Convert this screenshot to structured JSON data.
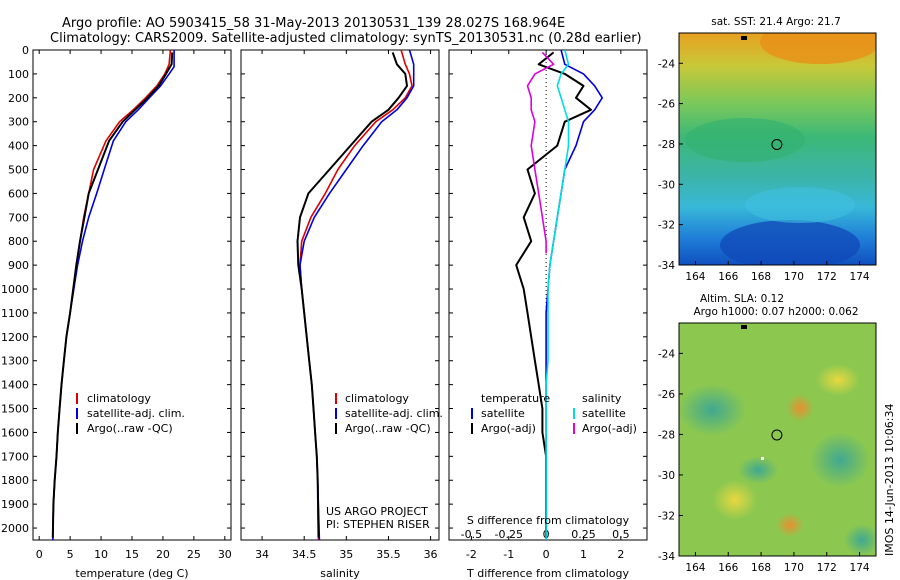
{
  "header": {
    "line1": "Argo profile: AO 5903415_58 31-May-2013 20130531_139 28.027S 168.964E",
    "line2": "Climatology: CARS2009. Satellite-adjusted climatology: synTS_20130531.nc (0.28d earlier)"
  },
  "side_stamp": "IMOS 14-Jun-2013 10:06:34",
  "project_note": {
    "line1": "US ARGO PROJECT",
    "line2": "PI: STEPHEN RISER"
  },
  "colors": {
    "climatology": "#dd0000",
    "satellite": "#0000dd",
    "argo": "#000000",
    "salinity_sat": "#00dddd",
    "salinity_argo": "#dd00dd"
  },
  "chart_data": [
    {
      "type": "line",
      "xlabel": "temperature (deg C)",
      "ylabel": "",
      "xlim": [
        -1,
        31
      ],
      "ylim": [
        2050,
        0
      ],
      "xticks": [
        0,
        5,
        10,
        15,
        20,
        25,
        30
      ],
      "yticks": [
        0,
        100,
        200,
        300,
        400,
        500,
        600,
        700,
        800,
        900,
        1000,
        1100,
        1200,
        1300,
        1400,
        1500,
        1600,
        1700,
        1800,
        1900,
        2000
      ],
      "legend": [
        "climatology",
        "satellite-adj. clim.",
        "Argo(..raw -QC)"
      ],
      "series": [
        {
          "name": "climatology",
          "color": "#dd0000",
          "x": [
            21.2,
            21.0,
            20.3,
            19.0,
            17.2,
            15.2,
            13.0,
            10.8,
            8.8,
            8.0,
            7.2,
            6.6,
            6.0,
            5.6,
            5.0,
            4.4,
            4.0,
            3.6,
            3.3,
            3.0,
            2.8,
            2.5,
            2.3,
            2.2
          ],
          "y": [
            0,
            60,
            100,
            150,
            200,
            250,
            300,
            380,
            500,
            600,
            700,
            800,
            900,
            1000,
            1100,
            1200,
            1300,
            1400,
            1500,
            1600,
            1700,
            1800,
            1900,
            2050
          ]
        },
        {
          "name": "satellite-adj. clim.",
          "color": "#0000dd",
          "x": [
            21.8,
            21.8,
            21.0,
            19.6,
            17.8,
            16.0,
            14.0,
            12.0,
            10.5,
            9.3,
            8.0,
            7.0,
            6.2,
            5.6,
            5.0,
            4.4,
            4.0,
            3.6,
            3.3,
            3.0,
            2.8,
            2.5,
            2.3,
            2.2
          ],
          "y": [
            0,
            70,
            100,
            150,
            200,
            250,
            300,
            380,
            500,
            600,
            700,
            800,
            900,
            1000,
            1100,
            1200,
            1300,
            1400,
            1500,
            1600,
            1700,
            1800,
            1900,
            2050
          ]
        },
        {
          "name": "Argo(..raw -QC)",
          "color": "#000000",
          "x": [
            21.5,
            21.4,
            20.5,
            19.3,
            17.5,
            15.5,
            13.5,
            11.3,
            9.5,
            8.0,
            7.3,
            6.6,
            6.0,
            5.5,
            5.0,
            4.4,
            4.0,
            3.6,
            3.3,
            3.0,
            2.8,
            2.5,
            2.3,
            2.2
          ],
          "y": [
            10,
            60,
            100,
            150,
            200,
            250,
            300,
            380,
            500,
            600,
            700,
            800,
            900,
            1000,
            1100,
            1200,
            1300,
            1400,
            1500,
            1600,
            1700,
            1800,
            1900,
            2040
          ]
        }
      ]
    },
    {
      "type": "line",
      "xlabel": "salinity",
      "ylabel": "",
      "xlim": [
        33.75,
        36.1
      ],
      "ylim": [
        2050,
        0
      ],
      "xticks": [
        34,
        34.5,
        35,
        35.5,
        36
      ],
      "legend": [
        "climatology",
        "satellite-adj. clim.",
        "Argo(..raw -QC)"
      ],
      "series": [
        {
          "name": "climatology",
          "color": "#dd0000",
          "x": [
            35.65,
            35.7,
            35.75,
            35.78,
            35.7,
            35.55,
            35.35,
            35.1,
            34.9,
            34.75,
            34.58,
            34.47,
            34.45,
            34.47,
            34.5,
            34.53,
            34.56,
            34.59,
            34.61,
            34.63,
            34.65,
            34.66,
            34.67
          ],
          "y": [
            0,
            60,
            100,
            150,
            200,
            250,
            300,
            400,
            500,
            600,
            700,
            800,
            900,
            1000,
            1100,
            1200,
            1300,
            1400,
            1500,
            1600,
            1700,
            1800,
            2050
          ]
        },
        {
          "name": "satellite-adj. clim.",
          "color": "#0000dd",
          "x": [
            35.75,
            35.8,
            35.8,
            35.8,
            35.72,
            35.6,
            35.42,
            35.2,
            35.0,
            34.8,
            34.62,
            34.5,
            34.45,
            34.47,
            34.5,
            34.53,
            34.56,
            34.59,
            34.61,
            34.63,
            34.65,
            34.66,
            34.68
          ],
          "y": [
            0,
            60,
            100,
            150,
            200,
            250,
            300,
            400,
            500,
            600,
            700,
            800,
            900,
            1000,
            1100,
            1200,
            1300,
            1400,
            1500,
            1600,
            1700,
            1800,
            2050
          ]
        },
        {
          "name": "Argo(..raw -QC)",
          "color": "#000000",
          "x": [
            35.55,
            35.6,
            35.7,
            35.72,
            35.62,
            35.5,
            35.3,
            35.05,
            34.8,
            34.55,
            34.45,
            34.42,
            34.43,
            34.47,
            34.5,
            34.53,
            34.56,
            34.59,
            34.61,
            34.63,
            34.65,
            34.66,
            34.67
          ],
          "y": [
            10,
            60,
            100,
            150,
            200,
            250,
            300,
            400,
            500,
            600,
            700,
            800,
            900,
            1000,
            1100,
            1200,
            1300,
            1400,
            1500,
            1600,
            1700,
            1800,
            2040
          ]
        }
      ]
    },
    {
      "type": "line",
      "xlabel": "T difference from climatology",
      "title": "S difference from climatology",
      "xlim": [
        -2.6,
        2.7
      ],
      "ylim": [
        2050,
        0
      ],
      "xticks": [
        -2,
        -1,
        0,
        1,
        2
      ],
      "top_xticks": [
        "-0.5",
        "-0.25",
        "0",
        "0.25",
        "0.5"
      ],
      "legend_titles": [
        "temperature",
        "salinity"
      ],
      "legend": [
        "satellite",
        "Argo(-adj)",
        "satellite",
        "Argo(-adj)"
      ],
      "series": [
        {
          "name": "satellite",
          "group": "temperature",
          "color": "#0000dd",
          "x": [
            0.4,
            0.5,
            1.0,
            1.3,
            1.5,
            1.3,
            1.0,
            0.8,
            0.5,
            0.4,
            0.3,
            0.2,
            0.1,
            0.05,
            0.0,
            0.0,
            0.0,
            0.0,
            0.0,
            0.0,
            0.0,
            0.0,
            0.0
          ],
          "y": [
            0,
            60,
            100,
            150,
            200,
            250,
            300,
            400,
            500,
            600,
            700,
            800,
            900,
            1000,
            1100,
            1200,
            1300,
            1400,
            1500,
            1600,
            1700,
            1800,
            2050
          ]
        },
        {
          "name": "Argo(-adj)",
          "group": "temperature",
          "color": "#000000",
          "x": [
            0.2,
            -0.2,
            0.5,
            1.0,
            0.8,
            1.2,
            0.5,
            0.3,
            -0.5,
            -0.3,
            -0.6,
            -0.4,
            -0.8,
            -0.6,
            -0.5,
            -0.4,
            -0.3,
            -0.2,
            -0.1,
            -0.1,
            0.0,
            0.0,
            0.0
          ],
          "y": [
            10,
            60,
            100,
            150,
            200,
            250,
            300,
            400,
            500,
            600,
            700,
            800,
            900,
            1000,
            1100,
            1200,
            1300,
            1400,
            1500,
            1600,
            1700,
            1800,
            2040
          ]
        },
        {
          "name": "satellite",
          "group": "salinity",
          "color": "#00dddd",
          "x": [
            0.5,
            0.6,
            0.4,
            0.3,
            0.4,
            0.5,
            0.6,
            0.6,
            0.5,
            0.4,
            0.3,
            0.2,
            0.1,
            0.05,
            0.05,
            0.05,
            0.05,
            0.0,
            0.0,
            0.0,
            0.0,
            0.0,
            0.0
          ],
          "y": [
            0,
            60,
            100,
            150,
            200,
            250,
            300,
            400,
            500,
            600,
            700,
            800,
            900,
            1000,
            1100,
            1200,
            1300,
            1400,
            1500,
            1600,
            1700,
            1800,
            2050
          ]
        },
        {
          "name": "Argo(-adj)",
          "group": "salinity",
          "color": "#dd00dd",
          "x": [
            -0.1,
            0.2,
            -0.3,
            -0.5,
            -0.4,
            -0.4,
            -0.3,
            -0.4,
            -0.3,
            -0.2,
            -0.1,
            0.0,
            0.0
          ],
          "y": [
            10,
            60,
            100,
            150,
            200,
            250,
            300,
            400,
            500,
            600,
            700,
            800,
            850
          ]
        }
      ]
    },
    {
      "type": "heatmap",
      "title": "sat. SST: 21.4  Argo: 21.7",
      "xlim": [
        163,
        175
      ],
      "ylim": [
        -34,
        -22.5
      ],
      "xticks": [
        164,
        166,
        168,
        170,
        172,
        174
      ],
      "yticks": [
        -24,
        -26,
        -28,
        -30,
        -32,
        -34
      ],
      "marker": {
        "lon": 168.964,
        "lat": -28.027
      }
    },
    {
      "type": "heatmap",
      "title": "Altim. SLA: 0.12",
      "subtitle": "Argo h1000: 0.07 h2000: 0.062",
      "xlim": [
        163,
        175
      ],
      "ylim": [
        -34,
        -22.5
      ],
      "xticks": [
        164,
        166,
        168,
        170,
        172,
        174
      ],
      "yticks": [
        -24,
        -26,
        -28,
        -30,
        -32,
        -34
      ],
      "marker": {
        "lon": 168.964,
        "lat": -28.027
      }
    }
  ]
}
